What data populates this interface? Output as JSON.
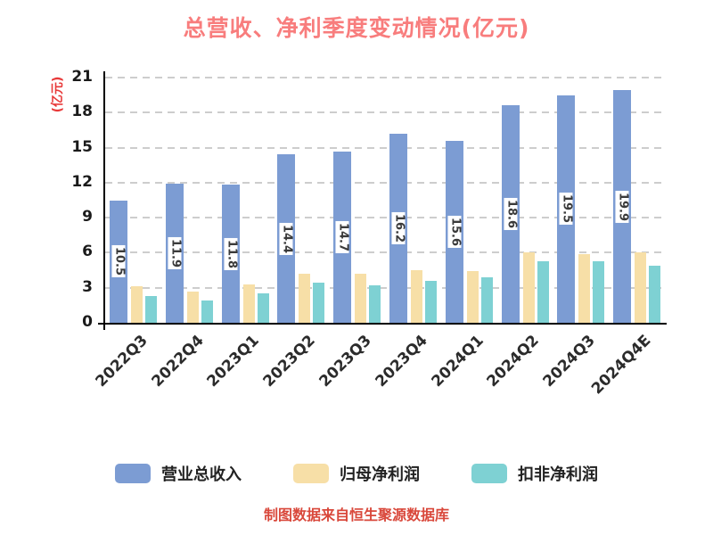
{
  "title": "总营收、净利季度变动情况(亿元)",
  "y_axis_label": "(亿元)",
  "footer": "制图数据来自恒生聚源数据库",
  "colors": {
    "title": "#F87D7D",
    "y_axis_label": "#E83A3A",
    "footer": "#D9483B",
    "axis": "#000000",
    "gridline": "#CDCDCD",
    "tick_text": "#1A1A1A",
    "x_label_text": "#2B2B2B",
    "bar_label_text": "#3A3A3A",
    "legend_text": "#222222",
    "revenue": "#7C9CD3",
    "net_profit": "#F7DFA7",
    "non_gaap_profit": "#7ED1D3"
  },
  "chart_data": {
    "type": "bar",
    "title": "总营收、净利季度变动情况(亿元)",
    "ylabel": "(亿元)",
    "ylim": [
      0,
      21
    ],
    "yticks": [
      0,
      3,
      6,
      9,
      12,
      15,
      18,
      21
    ],
    "grid": "horizontal-dashed",
    "legend_position": "bottom",
    "categories": [
      "2022Q3",
      "2022Q4",
      "2023Q1",
      "2023Q2",
      "2023Q3",
      "2023Q4",
      "2024Q1",
      "2024Q2",
      "2024Q3",
      "2024Q4E"
    ],
    "series": [
      {
        "key": "revenue",
        "name": "营业总收入",
        "color": "#7C9CD3",
        "values": [
          10.5,
          11.9,
          11.8,
          14.4,
          14.7,
          16.2,
          15.6,
          18.6,
          19.5,
          19.9
        ],
        "value_labels": "vertical-inside-bar"
      },
      {
        "key": "net-profit",
        "name": "归母净利润",
        "color": "#F7DFA7",
        "values": [
          3.1,
          2.7,
          3.3,
          4.2,
          4.2,
          4.5,
          4.4,
          6.0,
          5.9,
          6.0
        ]
      },
      {
        "key": "non-gaap-profit",
        "name": "扣非净利润",
        "color": "#7ED1D3",
        "values": [
          2.3,
          1.9,
          2.5,
          3.4,
          3.2,
          3.6,
          3.9,
          5.3,
          5.3,
          4.9
        ]
      }
    ]
  },
  "legend": {
    "items": [
      {
        "key": "revenue",
        "label": "营业总收入",
        "color": "#7C9CD3"
      },
      {
        "key": "net-profit",
        "label": "归母净利润",
        "color": "#F7DFA7"
      },
      {
        "key": "non-gaap-profit",
        "label": "扣非净利润",
        "color": "#7ED1D3"
      }
    ]
  }
}
